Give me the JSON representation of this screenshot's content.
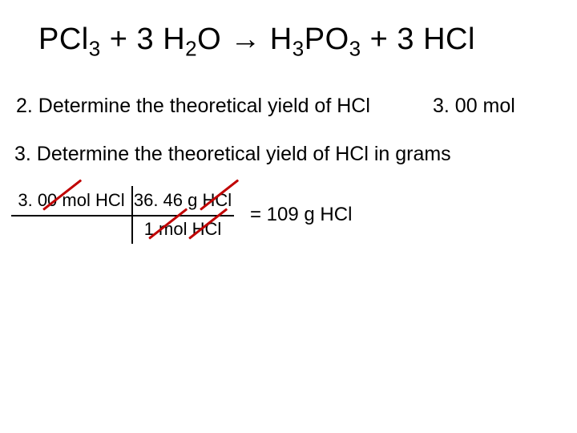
{
  "equation": {
    "r1": "PCl",
    "r1_sub": "3",
    "plus1": " + 3 H",
    "r2_sub": "2",
    "r2_o": "O ",
    "arrow": "→",
    "p1": " H",
    "p1_sub": "3",
    "p1_po": "PO",
    "p1_sub2": "3",
    "plus2": " + 3 HCl"
  },
  "q2": {
    "text": "2. Determine the theoretical yield of HCl",
    "answer": "3. 00 mol"
  },
  "q3": {
    "text": "3. Determine the theoretical yield of HCl in grams"
  },
  "calc": {
    "top_left": "3. 00 mol HCl",
    "top_right": "36. 46 g HCl",
    "bottom_left": "",
    "bottom_right": "1 mol HCl",
    "result": "= 109 g HCl"
  },
  "colors": {
    "text": "#000000",
    "strike": "#c00000",
    "background": "#ffffff"
  },
  "typography": {
    "equation_fontsize": 38,
    "body_fontsize": 25,
    "calc_fontsize": 22,
    "font_family": "Arial"
  }
}
